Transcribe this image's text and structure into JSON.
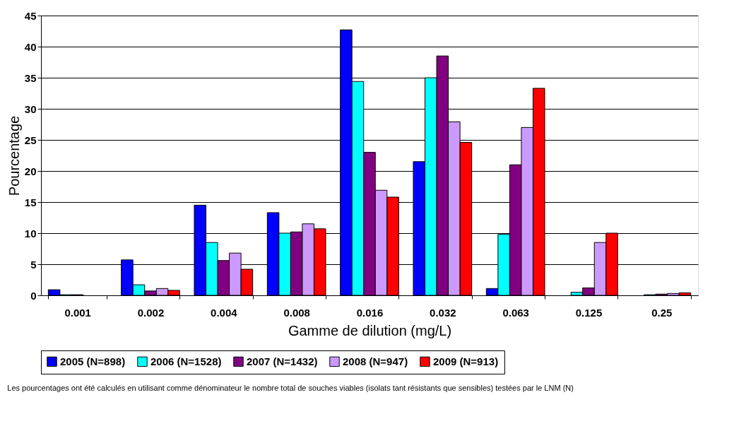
{
  "chart_data": {
    "type": "bar",
    "xlabel": "Gamme de dilution (mg/L)",
    "ylabel": "Pourcentage",
    "categories": [
      "0.001",
      "0.002",
      "0.004",
      "0.008",
      "0.016",
      "0.032",
      "0.063",
      "0.125",
      "0.25"
    ],
    "series": [
      {
        "name": "2005 (N=898)",
        "color": "#0000ff",
        "values": [
          0.9,
          5.7,
          14.5,
          13.3,
          42.7,
          21.5,
          1.1,
          0,
          0
        ]
      },
      {
        "name": "2006 (N=1528)",
        "color": "#00ffff",
        "values": [
          0.1,
          1.7,
          8.5,
          10.0,
          34.4,
          35.0,
          9.8,
          0.5,
          0.1
        ]
      },
      {
        "name": "2007 (N=1432)",
        "color": "#800080",
        "values": [
          0.1,
          0.7,
          5.6,
          10.2,
          23.0,
          38.5,
          21.0,
          1.2,
          0.2
        ]
      },
      {
        "name": "2008 (N=947)",
        "color": "#cc99ff",
        "values": [
          0,
          1.1,
          6.8,
          11.5,
          16.9,
          27.9,
          27.0,
          8.5,
          0.3
        ]
      },
      {
        "name": "2009 (N=913)",
        "color": "#ff0000",
        "values": [
          0,
          0.8,
          4.2,
          10.7,
          15.8,
          24.6,
          33.3,
          10.0,
          0.4
        ]
      }
    ],
    "ylim": [
      0,
      45
    ],
    "yticks": [
      0,
      5,
      10,
      15,
      20,
      25,
      30,
      35,
      40,
      45
    ],
    "grid": "y",
    "legend": "bottom",
    "annotations": [
      "Les pourcentages ont été calculés en utilisant comme dénominateur le nombre total de souches viables (isolats tant résistants que sensibles) testées par le LNM (N)"
    ]
  }
}
